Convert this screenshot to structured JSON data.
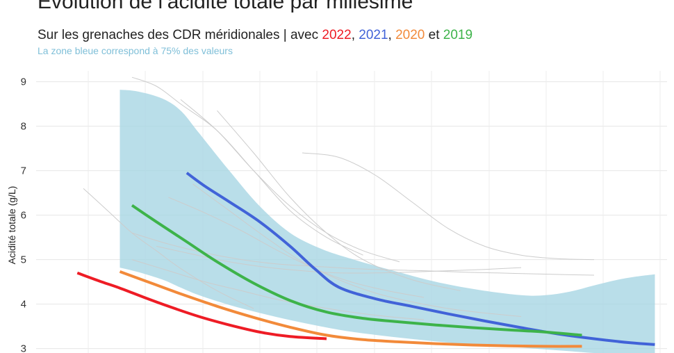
{
  "header": {
    "title": "Évolution de l’acidité totale par millésime",
    "subtitle_prefix": "Sur les grenaches des CDR méridionales | avec ",
    "y2022": "2022",
    "sep1": ", ",
    "y2021": "2021",
    "sep2": ", ",
    "y2020": "2020",
    "sep3": " et ",
    "y2019": "2019",
    "caption": "La zone bleue correspond à 75% des valeurs"
  },
  "colors": {
    "2022": "#ee1c25",
    "2021": "#4163d8",
    "2020": "#f28a3a",
    "2019": "#3db34a",
    "band": "#a8d6e4",
    "background_lines": "#cccccc",
    "caption": "#7fbfd8"
  },
  "chart_data": {
    "type": "line",
    "title": "Évolution de l’acidité totale par millésime",
    "ylabel": "Acidité totale (g/L)",
    "xlabel": "",
    "x_ticks": [],
    "y_ticks": [
      "3",
      "4",
      "5",
      "6",
      "7",
      "8",
      "9"
    ],
    "ylim": [
      2.9,
      9.4
    ],
    "xlim": [
      0,
      100
    ],
    "grid": true,
    "band": {
      "name": "La zone bleue correspond à 75% des valeurs",
      "x": [
        10,
        13,
        17,
        20,
        23,
        28,
        33,
        38,
        43,
        48,
        55,
        62,
        69,
        76,
        80,
        84,
        88,
        92,
        95,
        98
      ],
      "upper": [
        8.82,
        8.78,
        8.62,
        8.35,
        7.85,
        7.0,
        6.2,
        5.6,
        5.25,
        5.02,
        4.75,
        4.5,
        4.32,
        4.2,
        4.2,
        4.28,
        4.42,
        4.55,
        4.62,
        4.67
      ],
      "lower": [
        4.82,
        4.72,
        4.55,
        4.37,
        4.2,
        3.98,
        3.8,
        3.64,
        3.5,
        3.38,
        3.26,
        3.16,
        3.08,
        3.02,
        2.98,
        2.94,
        2.9,
        2.88,
        2.88,
        2.88
      ]
    },
    "series": [
      {
        "name": "2022",
        "x": [
          3,
          7,
          10,
          14,
          18,
          23,
          28,
          33,
          38,
          44
        ],
        "y": [
          4.7,
          4.5,
          4.36,
          4.15,
          3.95,
          3.72,
          3.53,
          3.37,
          3.27,
          3.22
        ]
      },
      {
        "name": "2021",
        "x": [
          21,
          24,
          28,
          33,
          38,
          42,
          46,
          52,
          58,
          64,
          70,
          76,
          82,
          88,
          94,
          98
        ],
        "y": [
          6.95,
          6.65,
          6.3,
          5.85,
          5.3,
          4.8,
          4.38,
          4.12,
          3.95,
          3.78,
          3.62,
          3.47,
          3.33,
          3.22,
          3.13,
          3.09
        ]
      },
      {
        "name": "2020",
        "x": [
          10,
          15,
          20,
          26,
          32,
          38,
          44,
          50,
          56,
          62,
          68,
          74,
          80,
          86
        ],
        "y": [
          4.73,
          4.48,
          4.23,
          3.95,
          3.7,
          3.48,
          3.3,
          3.2,
          3.15,
          3.11,
          3.08,
          3.06,
          3.05,
          3.05
        ]
      },
      {
        "name": "2019",
        "x": [
          12,
          16,
          21,
          26,
          32,
          38,
          44,
          50,
          56,
          62,
          68,
          74,
          80,
          86
        ],
        "y": [
          6.22,
          5.85,
          5.4,
          4.95,
          4.47,
          4.08,
          3.82,
          3.68,
          3.6,
          3.53,
          3.47,
          3.42,
          3.37,
          3.3
        ]
      }
    ],
    "background_series": [
      {
        "x": [
          4,
          8,
          12,
          16,
          20,
          26,
          32
        ],
        "y": [
          6.6,
          6.1,
          5.6,
          5.2,
          4.8,
          4.3,
          3.9
        ]
      },
      {
        "x": [
          12,
          16,
          20,
          26,
          32,
          38,
          44,
          50
        ],
        "y": [
          9.1,
          8.9,
          8.5,
          7.9,
          7.0,
          6.1,
          5.5,
          5.1
        ]
      },
      {
        "x": [
          20,
          26,
          32,
          38,
          44,
          50,
          56
        ],
        "y": [
          8.6,
          7.9,
          7.0,
          6.2,
          5.6,
          5.2,
          4.95
        ]
      },
      {
        "x": [
          26,
          32,
          38,
          44,
          50,
          58,
          66
        ],
        "y": [
          8.35,
          7.4,
          6.4,
          5.6,
          5.0,
          4.55,
          4.3
        ]
      },
      {
        "x": [
          40,
          46,
          52,
          58,
          64,
          70,
          76,
          82,
          88
        ],
        "y": [
          7.4,
          7.3,
          6.9,
          6.3,
          5.7,
          5.3,
          5.1,
          5.02,
          5.0
        ]
      },
      {
        "x": [
          12,
          18,
          24,
          30,
          36,
          42,
          48,
          54,
          60,
          66,
          72,
          78,
          84,
          88
        ],
        "y": [
          5.6,
          5.35,
          5.15,
          5.0,
          4.9,
          4.85,
          4.8,
          4.77,
          4.75,
          4.72,
          4.7,
          4.68,
          4.66,
          4.65
        ]
      },
      {
        "x": [
          16,
          22,
          28,
          34,
          40,
          46,
          52,
          58,
          64,
          70,
          76
        ],
        "y": [
          5.3,
          5.12,
          4.95,
          4.83,
          4.75,
          4.7,
          4.7,
          4.72,
          4.75,
          4.78,
          4.82
        ]
      },
      {
        "x": [
          18,
          24,
          30,
          36,
          42,
          48,
          54,
          60
        ],
        "y": [
          6.4,
          6.05,
          5.65,
          5.2,
          4.8,
          4.5,
          4.3,
          4.15
        ]
      },
      {
        "x": [
          22,
          28,
          34,
          40,
          46,
          52,
          58,
          64,
          70,
          76
        ],
        "y": [
          6.7,
          6.1,
          5.5,
          4.95,
          4.55,
          4.25,
          4.05,
          3.9,
          3.8,
          3.72
        ]
      },
      {
        "x": [
          12,
          18,
          24,
          30,
          36,
          42,
          48,
          54,
          60
        ],
        "y": [
          5.0,
          4.75,
          4.5,
          4.3,
          4.1,
          3.95,
          3.82,
          3.72,
          3.65
        ]
      }
    ]
  }
}
